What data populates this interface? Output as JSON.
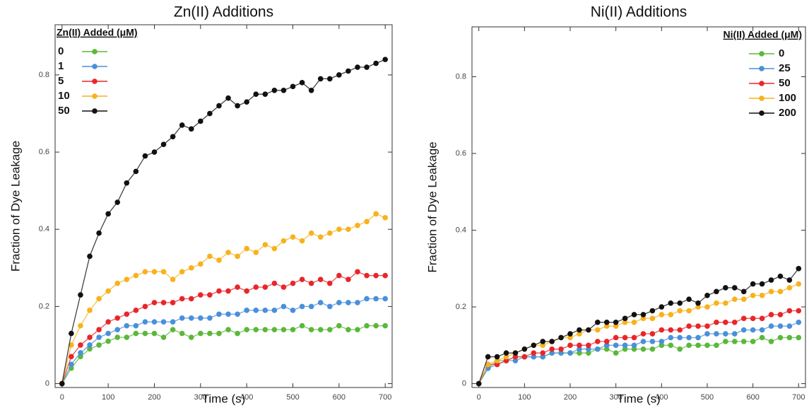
{
  "chart_data": [
    {
      "type": "line",
      "title": "Zn(II) Additions",
      "x_label": "Time (s)",
      "y_label": "Fraction of Dye Leakage",
      "legend_title": "Zn(II) Added (μM)",
      "legend": "upper left",
      "xlim": [
        -15,
        715
      ],
      "ylim": [
        -0.01,
        0.93
      ],
      "xticks": [
        0,
        100,
        200,
        300,
        400,
        500,
        600,
        700
      ],
      "yticks": [
        0,
        0.2,
        0.4,
        0.6,
        0.8
      ],
      "x": [
        0,
        20,
        40,
        60,
        80,
        100,
        120,
        140,
        160,
        180,
        200,
        220,
        240,
        260,
        280,
        300,
        320,
        340,
        360,
        380,
        400,
        420,
        440,
        460,
        480,
        500,
        520,
        540,
        560,
        580,
        600,
        620,
        640,
        660,
        680,
        700
      ],
      "series": [
        {
          "name": "0",
          "color": "#5ab83a",
          "values": [
            0,
            0.04,
            0.07,
            0.09,
            0.1,
            0.11,
            0.12,
            0.12,
            0.13,
            0.13,
            0.13,
            0.12,
            0.14,
            0.13,
            0.12,
            0.13,
            0.13,
            0.13,
            0.14,
            0.13,
            0.14,
            0.14,
            0.14,
            0.14,
            0.14,
            0.14,
            0.15,
            0.14,
            0.14,
            0.14,
            0.15,
            0.14,
            0.14,
            0.15,
            0.15,
            0.15
          ]
        },
        {
          "name": "1",
          "color": "#4a90d9",
          "values": [
            0,
            0.05,
            0.08,
            0.1,
            0.12,
            0.13,
            0.14,
            0.15,
            0.15,
            0.16,
            0.16,
            0.16,
            0.16,
            0.17,
            0.17,
            0.17,
            0.17,
            0.18,
            0.18,
            0.18,
            0.19,
            0.19,
            0.19,
            0.19,
            0.2,
            0.19,
            0.2,
            0.2,
            0.21,
            0.2,
            0.21,
            0.21,
            0.21,
            0.22,
            0.22,
            0.22
          ]
        },
        {
          "name": "5",
          "color": "#e8262a",
          "values": [
            0,
            0.07,
            0.1,
            0.12,
            0.14,
            0.16,
            0.17,
            0.18,
            0.19,
            0.2,
            0.21,
            0.21,
            0.21,
            0.22,
            0.22,
            0.23,
            0.23,
            0.24,
            0.24,
            0.25,
            0.24,
            0.25,
            0.25,
            0.26,
            0.25,
            0.26,
            0.27,
            0.26,
            0.27,
            0.26,
            0.28,
            0.27,
            0.29,
            0.28,
            0.28,
            0.28
          ]
        },
        {
          "name": "10",
          "color": "#f7b21c",
          "values": [
            0,
            0.1,
            0.15,
            0.19,
            0.22,
            0.24,
            0.26,
            0.27,
            0.28,
            0.29,
            0.29,
            0.29,
            0.27,
            0.29,
            0.3,
            0.31,
            0.33,
            0.32,
            0.34,
            0.33,
            0.35,
            0.34,
            0.36,
            0.35,
            0.37,
            0.38,
            0.37,
            0.39,
            0.38,
            0.39,
            0.4,
            0.4,
            0.41,
            0.42,
            0.44,
            0.43
          ]
        },
        {
          "name": "50",
          "color": "#111111",
          "values": [
            0,
            0.13,
            0.23,
            0.33,
            0.39,
            0.44,
            0.47,
            0.52,
            0.55,
            0.59,
            0.6,
            0.62,
            0.64,
            0.67,
            0.66,
            0.68,
            0.7,
            0.72,
            0.74,
            0.72,
            0.73,
            0.75,
            0.75,
            0.76,
            0.76,
            0.77,
            0.78,
            0.76,
            0.79,
            0.79,
            0.8,
            0.81,
            0.82,
            0.82,
            0.83,
            0.84
          ]
        }
      ]
    },
    {
      "type": "line",
      "title": "Ni(II) Additions",
      "x_label": "Time (s)",
      "y_label": "Fraction of Dye Leakage",
      "legend_title": "Ni(II) Added (μM)",
      "legend": "upper right",
      "xlim": [
        -15,
        715
      ],
      "ylim": [
        -0.01,
        0.93
      ],
      "xticks": [
        0,
        100,
        200,
        300,
        400,
        500,
        600,
        700
      ],
      "yticks": [
        0,
        0.2,
        0.4,
        0.6,
        0.8
      ],
      "x": [
        0,
        20,
        40,
        60,
        80,
        100,
        120,
        140,
        160,
        180,
        200,
        220,
        240,
        260,
        280,
        300,
        320,
        340,
        360,
        380,
        400,
        420,
        440,
        460,
        480,
        500,
        520,
        540,
        560,
        580,
        600,
        620,
        640,
        660,
        680,
        700
      ],
      "series": [
        {
          "name": "0",
          "color": "#5ab83a",
          "values": [
            0,
            0.04,
            0.06,
            0.06,
            0.07,
            0.07,
            0.07,
            0.07,
            0.08,
            0.08,
            0.08,
            0.08,
            0.08,
            0.09,
            0.09,
            0.08,
            0.09,
            0.09,
            0.09,
            0.09,
            0.1,
            0.1,
            0.09,
            0.1,
            0.1,
            0.1,
            0.1,
            0.11,
            0.11,
            0.11,
            0.11,
            0.12,
            0.11,
            0.12,
            0.12,
            0.12
          ]
        },
        {
          "name": "25",
          "color": "#4a90d9",
          "values": [
            0,
            0.04,
            0.05,
            0.06,
            0.06,
            0.07,
            0.07,
            0.07,
            0.08,
            0.08,
            0.08,
            0.09,
            0.09,
            0.09,
            0.1,
            0.1,
            0.1,
            0.1,
            0.11,
            0.11,
            0.11,
            0.12,
            0.12,
            0.12,
            0.12,
            0.13,
            0.13,
            0.13,
            0.13,
            0.14,
            0.14,
            0.14,
            0.15,
            0.15,
            0.15,
            0.16
          ]
        },
        {
          "name": "50",
          "color": "#e8262a",
          "values": [
            0,
            0.05,
            0.05,
            0.06,
            0.07,
            0.07,
            0.08,
            0.08,
            0.09,
            0.09,
            0.1,
            0.1,
            0.1,
            0.11,
            0.11,
            0.12,
            0.12,
            0.12,
            0.13,
            0.13,
            0.14,
            0.14,
            0.14,
            0.15,
            0.15,
            0.15,
            0.16,
            0.16,
            0.16,
            0.17,
            0.17,
            0.17,
            0.18,
            0.18,
            0.19,
            0.19
          ]
        },
        {
          "name": "100",
          "color": "#f7b21c",
          "values": [
            0,
            0.05,
            0.06,
            0.07,
            0.08,
            0.09,
            0.1,
            0.1,
            0.11,
            0.12,
            0.12,
            0.13,
            0.14,
            0.14,
            0.15,
            0.15,
            0.16,
            0.16,
            0.17,
            0.17,
            0.18,
            0.18,
            0.19,
            0.19,
            0.2,
            0.2,
            0.21,
            0.21,
            0.22,
            0.22,
            0.23,
            0.23,
            0.24,
            0.24,
            0.25,
            0.26
          ]
        },
        {
          "name": "200",
          "color": "#111111",
          "values": [
            0,
            0.07,
            0.07,
            0.08,
            0.08,
            0.09,
            0.1,
            0.11,
            0.11,
            0.12,
            0.13,
            0.14,
            0.14,
            0.16,
            0.16,
            0.16,
            0.17,
            0.18,
            0.18,
            0.19,
            0.2,
            0.21,
            0.21,
            0.22,
            0.21,
            0.23,
            0.24,
            0.25,
            0.25,
            0.24,
            0.26,
            0.26,
            0.27,
            0.28,
            0.27,
            0.3
          ]
        }
      ]
    }
  ]
}
